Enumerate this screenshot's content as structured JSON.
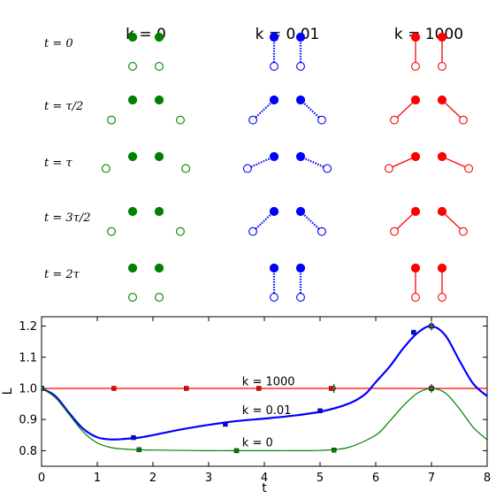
{
  "diagram": {
    "columns": [
      {
        "label": "k = 0",
        "color": "#008000",
        "link": "none"
      },
      {
        "label": "k = 0.01",
        "color": "#0000ff",
        "link": "dotted"
      },
      {
        "label": "k = 1000",
        "color": "#ff0000",
        "link": "solid"
      }
    ],
    "rows": [
      {
        "t": "t = 0",
        "phase": 0
      },
      {
        "t": "t = τ/2",
        "phase": 0.5
      },
      {
        "t": "t = τ",
        "phase": 1
      },
      {
        "t": "t = 3τ/2",
        "phase": 1.5
      },
      {
        "t": "t = 2τ",
        "phase": 2
      }
    ]
  },
  "chart_data": {
    "type": "line",
    "xlabel": "t",
    "ylabel": "L",
    "xlim": [
      0,
      8
    ],
    "ylim": [
      0.75,
      1.23
    ],
    "xticks": [
      0,
      1,
      2,
      3,
      4,
      5,
      6,
      7,
      8
    ],
    "yticks": [
      0.8,
      0.9,
      1.0,
      1.1,
      1.2
    ],
    "yticklabels": [
      "0.8",
      "0.9",
      "1.0",
      "1.1",
      "1.2"
    ],
    "grid": false,
    "series": [
      {
        "name": "k = 1000",
        "color": "#ff0000",
        "x": [
          0,
          8
        ],
        "y": [
          1.0,
          1.0
        ],
        "markers": [
          [
            0,
            1.0
          ],
          [
            1.3,
            1.0
          ],
          [
            2.6,
            1.0
          ],
          [
            3.9,
            1.0
          ],
          [
            5.2,
            1.0
          ],
          [
            7.0,
            1.0
          ]
        ],
        "label_at": [
          3.6,
          1.01
        ]
      },
      {
        "name": "k = 0.01",
        "color": "#0000ff",
        "x": [
          0,
          0.25,
          0.5,
          0.75,
          1.0,
          1.25,
          1.5,
          1.75,
          2.0,
          2.5,
          3.0,
          3.5,
          4.0,
          4.5,
          5.0,
          5.5,
          5.8,
          6.0,
          6.25,
          6.5,
          6.75,
          7.0,
          7.25,
          7.5,
          7.75,
          8.0
        ],
        "y": [
          1.0,
          0.975,
          0.92,
          0.87,
          0.843,
          0.836,
          0.838,
          0.842,
          0.85,
          0.868,
          0.883,
          0.895,
          0.903,
          0.912,
          0.925,
          0.95,
          0.98,
          1.02,
          1.07,
          1.13,
          1.178,
          1.2,
          1.17,
          1.09,
          1.015,
          0.975
        ],
        "markers": [
          [
            0,
            1.0
          ],
          [
            1.65,
            0.842
          ],
          [
            3.3,
            0.885
          ],
          [
            5.0,
            0.928
          ],
          [
            6.68,
            1.18
          ],
          [
            7.0,
            1.2
          ]
        ],
        "label_at": [
          3.6,
          0.918
        ]
      },
      {
        "name": "k = 0",
        "color": "#008000",
        "x": [
          0,
          0.25,
          0.5,
          0.75,
          1.0,
          1.25,
          1.5,
          1.75,
          2.0,
          2.5,
          3.0,
          3.5,
          4.0,
          4.5,
          5.0,
          5.5,
          6.0,
          6.25,
          6.5,
          6.75,
          7.0,
          7.25,
          7.5,
          7.75,
          8.0
        ],
        "y": [
          1.0,
          0.97,
          0.915,
          0.86,
          0.825,
          0.81,
          0.805,
          0.803,
          0.802,
          0.801,
          0.8,
          0.8,
          0.8,
          0.8,
          0.801,
          0.81,
          0.85,
          0.895,
          0.945,
          0.985,
          1.0,
          0.985,
          0.935,
          0.875,
          0.835
        ],
        "markers": [
          [
            0,
            1.0
          ],
          [
            1.75,
            0.803
          ],
          [
            3.5,
            0.8
          ],
          [
            5.25,
            0.802
          ],
          [
            7.0,
            1.0
          ]
        ],
        "label_at": [
          3.6,
          0.814
        ]
      }
    ],
    "error_marks": [
      [
        5.25,
        1.0
      ],
      [
        7.0,
        1.0
      ],
      [
        7.0,
        1.2
      ]
    ]
  }
}
